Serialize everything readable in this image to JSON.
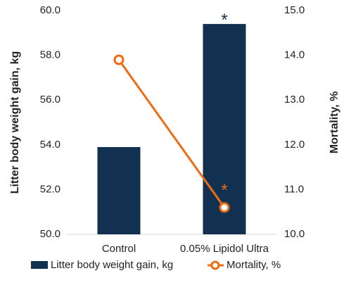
{
  "chart_data": {
    "type": "bar",
    "categories": [
      "Control",
      "0.05% Lipidol Ultra"
    ],
    "series": [
      {
        "name": "Litter body weight gain, kg",
        "kind": "bar",
        "axis": "left",
        "values": [
          53.9,
          59.4
        ],
        "significance": [
          "",
          "*"
        ],
        "color": "#12304f"
      },
      {
        "name": "Mortality, %",
        "kind": "line",
        "axis": "right",
        "values": [
          13.9,
          10.6
        ],
        "significance": [
          "",
          "*"
        ],
        "color": "#ee6c14"
      }
    ],
    "ylabel": "Litter body weight gain, kg",
    "y2label": "Mortality, %",
    "ylim": [
      50.0,
      60.0
    ],
    "y2lim": [
      10.0,
      15.0
    ],
    "yticks": [
      "50.0",
      "52.0",
      "54.0",
      "56.0",
      "58.0",
      "60.0"
    ],
    "y2ticks": [
      "10.0",
      "11.0",
      "12.0",
      "13.0",
      "14.0",
      "15.0"
    ],
    "grid": false,
    "legend_position": "bottom"
  }
}
